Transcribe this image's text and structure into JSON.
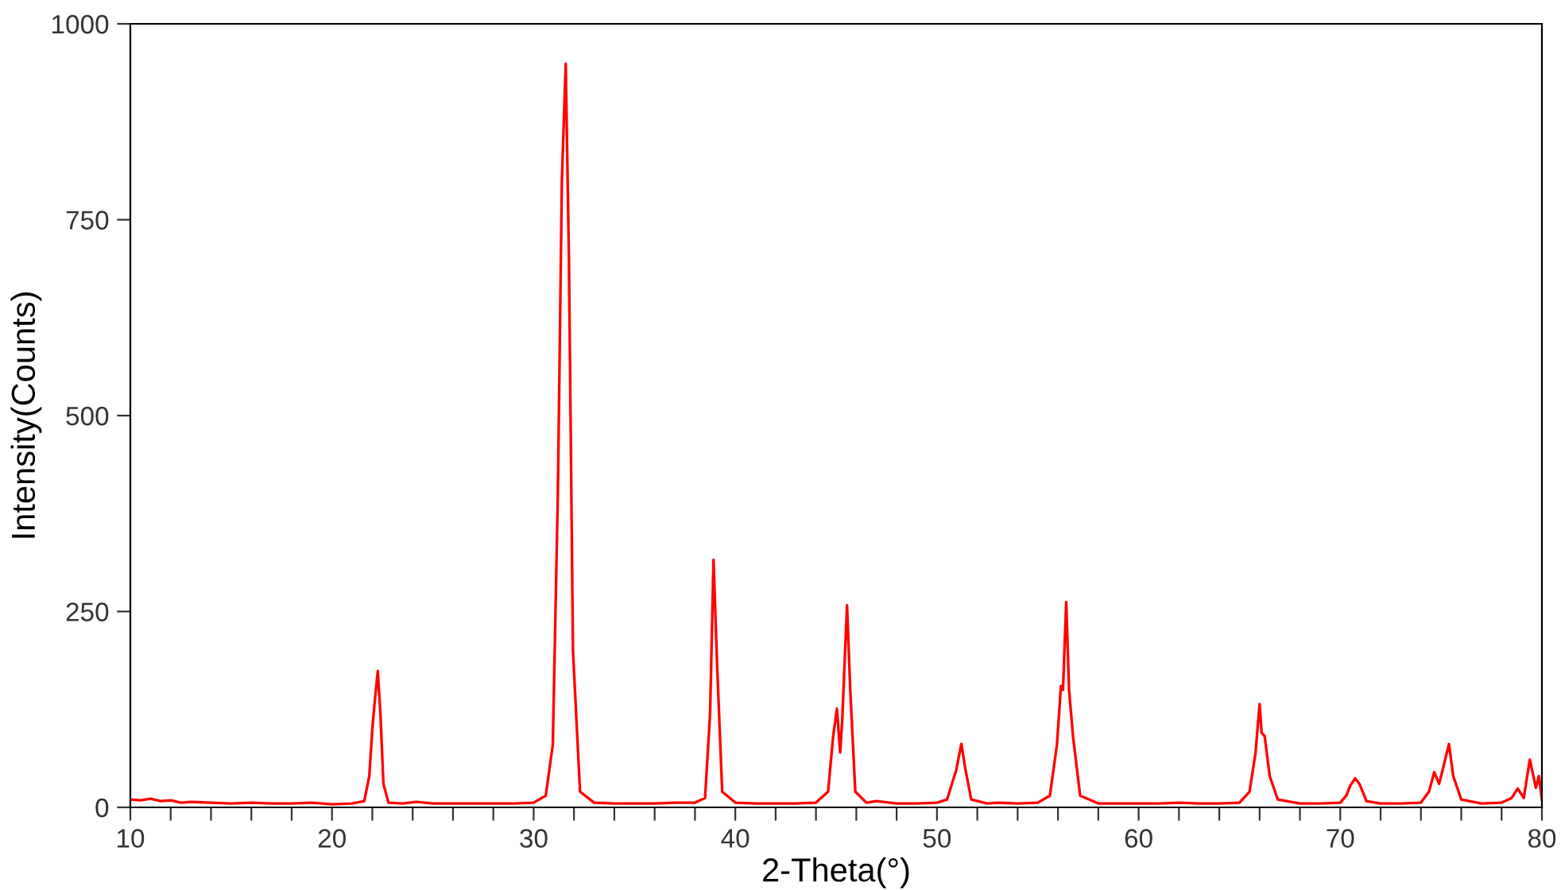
{
  "chart_data": {
    "type": "line",
    "xlabel": "2-Theta(°)",
    "ylabel": "Intensity(Counts)",
    "xlim": [
      10,
      80
    ],
    "ylim": [
      0,
      1000
    ],
    "xticks": [
      10,
      {
        "value": 12,
        "label": null
      },
      {
        "value": 14,
        "label": null
      },
      {
        "value": 16,
        "label": null
      },
      {
        "value": 18,
        "label": null
      },
      20,
      {
        "value": 22,
        "label": null
      },
      {
        "value": 24,
        "label": null
      },
      {
        "value": 26,
        "label": null
      },
      {
        "value": 28,
        "label": null
      },
      30,
      {
        "value": 32,
        "label": null
      },
      {
        "value": 34,
        "label": null
      },
      {
        "value": 36,
        "label": null
      },
      {
        "value": 38,
        "label": null
      },
      40,
      {
        "value": 42,
        "label": null
      },
      {
        "value": 44,
        "label": null
      },
      {
        "value": 46,
        "label": null
      },
      {
        "value": 48,
        "label": null
      },
      50,
      {
        "value": 52,
        "label": null
      },
      {
        "value": 54,
        "label": null
      },
      {
        "value": 56,
        "label": null
      },
      {
        "value": 58,
        "label": null
      },
      60,
      {
        "value": 62,
        "label": null
      },
      {
        "value": 64,
        "label": null
      },
      {
        "value": 66,
        "label": null
      },
      {
        "value": 68,
        "label": null
      },
      70,
      {
        "value": 72,
        "label": null
      },
      {
        "value": 74,
        "label": null
      },
      {
        "value": 76,
        "label": null
      },
      {
        "value": 78,
        "label": null
      },
      80
    ],
    "yticks": [
      0,
      250,
      500,
      750,
      1000
    ],
    "grid": false,
    "legend": false,
    "marker": "none",
    "line_style": "solid",
    "series": [
      {
        "color": "#ff0000",
        "x": [
          10,
          10.5,
          11,
          11.5,
          12,
          12.5,
          13,
          14,
          15,
          16,
          17,
          18,
          19,
          20,
          21,
          21.6,
          21.85,
          22.0,
          22.1,
          22.27,
          22.4,
          22.55,
          22.8,
          23.5,
          24.2,
          25,
          26,
          27,
          28,
          29,
          30,
          30.6,
          30.95,
          31.2,
          31.4,
          31.59,
          31.75,
          31.95,
          32.3,
          33,
          34,
          35,
          36,
          37,
          38,
          38.5,
          38.75,
          38.92,
          39.1,
          39.35,
          40,
          41,
          42,
          43,
          44,
          44.6,
          44.85,
          45.04,
          45.2,
          45.3,
          45.54,
          45.7,
          45.95,
          46.5,
          47,
          48,
          49,
          50,
          50.5,
          50.8,
          50.95,
          51.21,
          51.4,
          51.7,
          52.5,
          53,
          54,
          55,
          55.6,
          55.95,
          56.15,
          56.25,
          56.41,
          56.55,
          56.75,
          57.1,
          58,
          59,
          60,
          61,
          62,
          63,
          64,
          65,
          65.5,
          65.8,
          66.0,
          66.1,
          66.25,
          66.5,
          66.9,
          68,
          69,
          70,
          70.3,
          70.5,
          70.74,
          70.95,
          71.3,
          72,
          73,
          74,
          74.4,
          74.66,
          74.9,
          75.1,
          75.39,
          75.6,
          76,
          77,
          78,
          78.5,
          78.8,
          79.1,
          79.4,
          79.7,
          79.85,
          80
        ],
        "values": [
          10,
          9,
          11,
          8,
          9,
          6,
          7,
          6,
          5,
          6,
          5,
          5,
          6,
          4,
          5,
          8,
          40,
          100,
          130,
          174,
          120,
          30,
          6,
          5,
          7,
          5,
          5,
          5,
          5,
          5,
          6,
          15,
          80,
          400,
          800,
          949,
          700,
          200,
          20,
          6,
          5,
          5,
          5,
          6,
          6,
          12,
          120,
          316,
          180,
          20,
          6,
          5,
          5,
          5,
          6,
          20,
          90,
          126,
          70,
          110,
          258,
          150,
          20,
          6,
          8,
          5,
          5,
          6,
          10,
          35,
          47,
          81,
          50,
          10,
          5,
          6,
          5,
          6,
          15,
          80,
          155,
          150,
          262,
          150,
          90,
          15,
          5,
          5,
          5,
          5,
          6,
          5,
          5,
          6,
          20,
          70,
          132,
          95,
          91,
          40,
          10,
          5,
          5,
          6,
          15,
          28,
          37,
          30,
          8,
          5,
          5,
          6,
          20,
          45,
          30,
          50,
          81,
          40,
          10,
          5,
          6,
          12,
          24,
          12,
          61,
          25,
          40,
          10
        ]
      }
    ]
  }
}
